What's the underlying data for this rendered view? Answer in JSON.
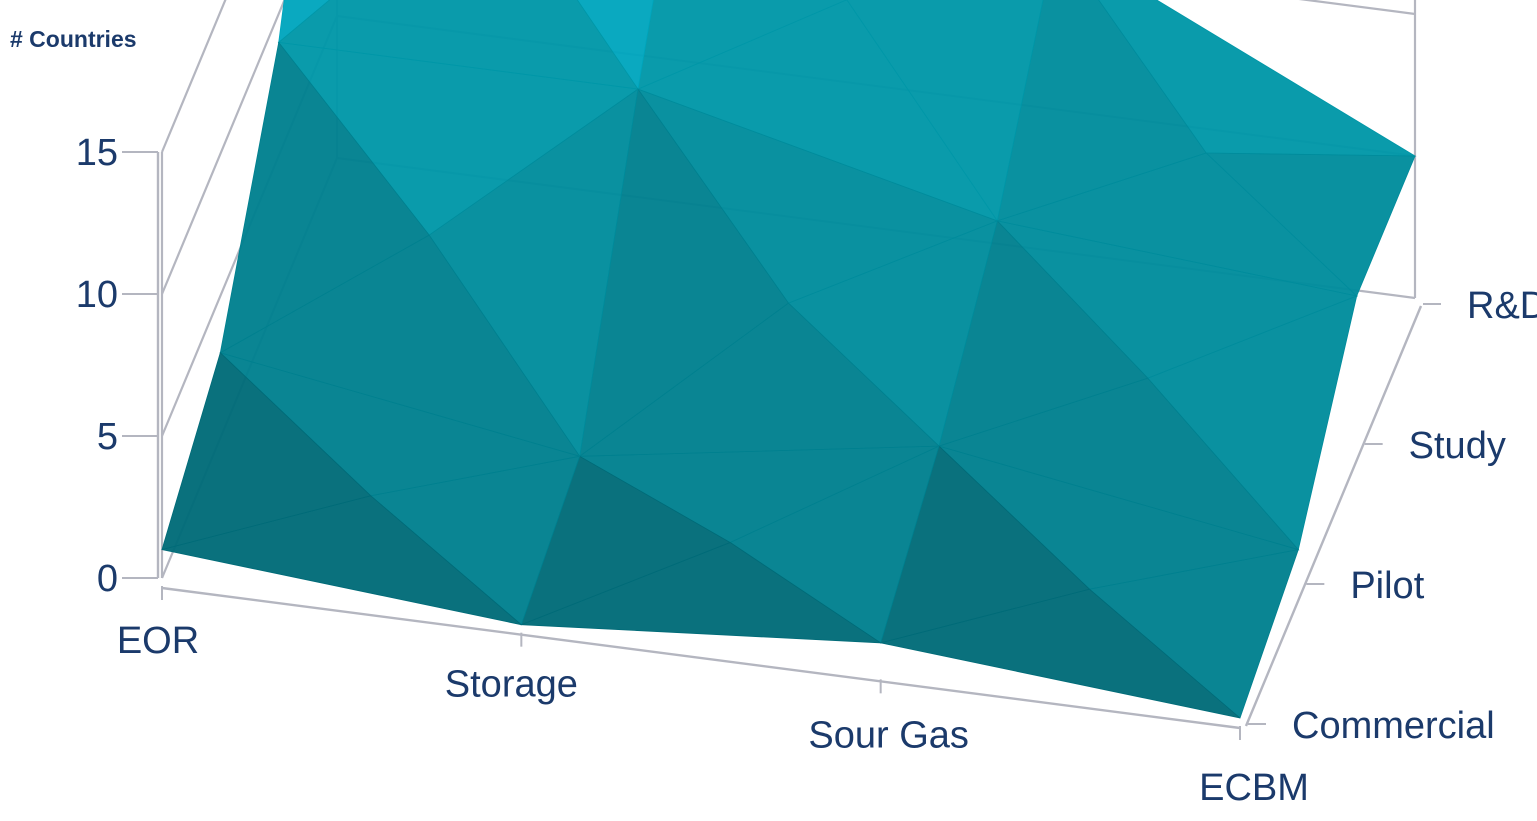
{
  "chart_data": {
    "type": "surface",
    "zlabel": "# Countries",
    "zlim": [
      0,
      15
    ],
    "z_ticks": [
      "0",
      "5",
      "10",
      "15"
    ],
    "x_categories": [
      "EOR",
      "Storage",
      "Sour Gas",
      "ECBM"
    ],
    "y_categories": [
      "Commercial",
      "Pilot",
      "Study",
      "R&D"
    ],
    "series": [
      {
        "name": "Commercial",
        "values": [
          1,
          0,
          1,
          0
        ]
      },
      {
        "name": "Pilot",
        "values": [
          3,
          1,
          3,
          1
        ]
      },
      {
        "name": "Study",
        "values": [
          9,
          9,
          6,
          5
        ]
      },
      {
        "name": "R&D",
        "values": [
          20,
          16,
          11,
          5
        ]
      }
    ],
    "colors": {
      "surface_dark": "#006b78",
      "surface_mid": "#00899a",
      "surface_light": "#00acc8",
      "surface_top": "#72c5d6",
      "axis": "#b4b6c0",
      "text": "#1b3a6b"
    },
    "grid": true
  }
}
